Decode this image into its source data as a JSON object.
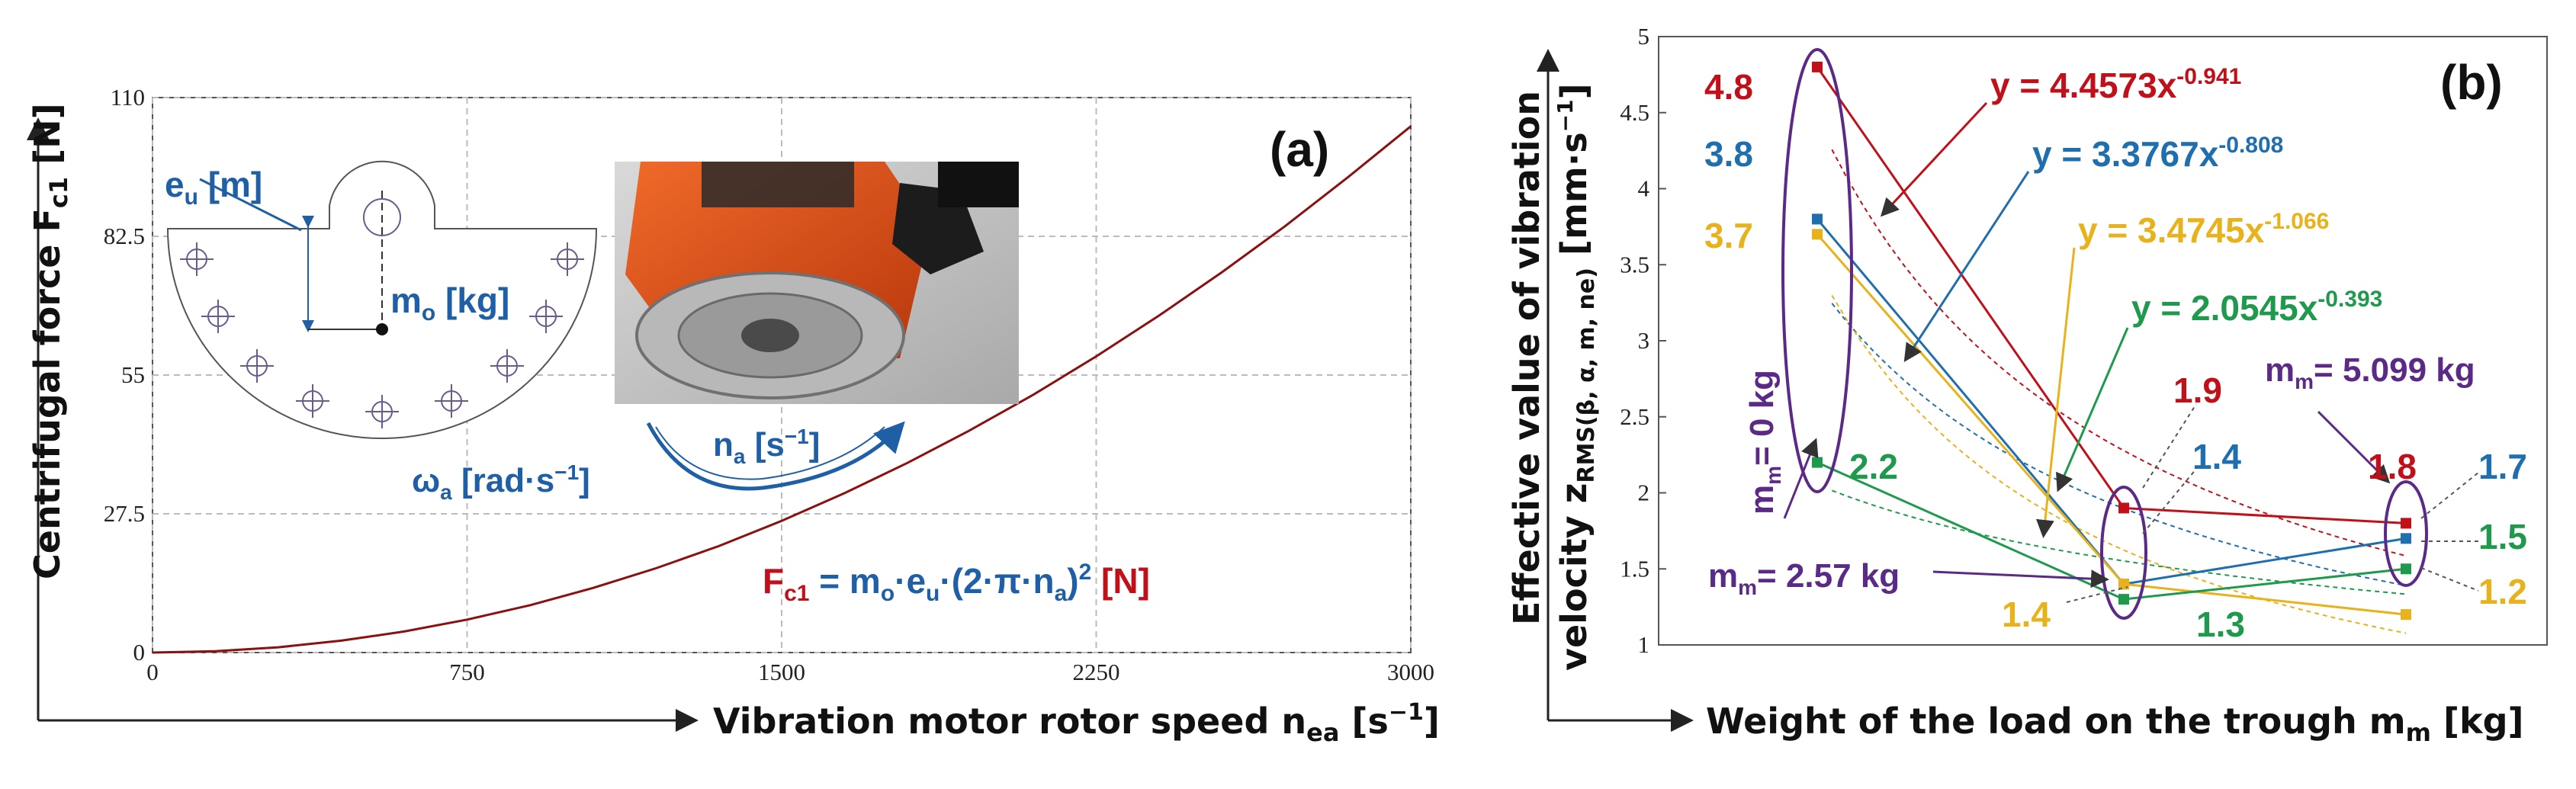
{
  "chart_data": [
    {
      "panel": "(a)",
      "type": "line",
      "xlabel": "Vibration motor rotor speed n",
      "xlabel_sub": "ea",
      "xlabel_unit": " [s",
      "xlabel_unit_exp": "−1",
      "xlabel_unit_end": "]",
      "ylabel": "Centrifugal force F",
      "ylabel_sub": "c1",
      "ylabel_unit": " [N]",
      "x_ticks": [
        "0",
        "750",
        "1500",
        "2250",
        "3000"
      ],
      "y_ticks": [
        "0",
        "27.5",
        "55",
        "82.5",
        "110"
      ],
      "xlim": [
        0,
        3000
      ],
      "ylim": [
        0,
        110
      ],
      "curve": {
        "x": [
          0,
          150,
          300,
          450,
          600,
          750,
          900,
          1050,
          1200,
          1350,
          1500,
          1650,
          1800,
          1950,
          2100,
          2250,
          2400,
          2550,
          2700,
          2850,
          3000
        ],
        "y": [
          0,
          0.26,
          1.04,
          2.35,
          4.17,
          6.52,
          9.39,
          12.8,
          16.7,
          21.1,
          26.1,
          31.6,
          37.6,
          44.1,
          51.1,
          58.7,
          66.8,
          75.4,
          84.5,
          94.2,
          104.3
        ]
      },
      "color": "#8b1010",
      "formula": {
        "lhs": "F",
        "lhs_sub": "c1",
        "rhs1": " = m",
        "rhs1_sub": "o",
        "rhs2": "·e",
        "rhs2_sub": "u",
        "rhs3": "·(2·π·n",
        "rhs3_sub": "a",
        "rhs4": ")",
        "rhs4_sup": "2",
        "unit": " [N]"
      },
      "inset": {
        "eu_label": "e",
        "eu_sub": "u",
        "eu_unit": " [m]",
        "mo_label": "m",
        "mo_sub": "o",
        "mo_unit": " [kg]",
        "na_label": "n",
        "na_sub": "a",
        "na_unit": " [s",
        "na_exp": "−1",
        "na_end": "]",
        "omega_label": "ω",
        "omega_sub": "a",
        "omega_unit": " [rad·s",
        "omega_exp": "−1",
        "omega_end": "]"
      }
    },
    {
      "panel": "(b)",
      "type": "line",
      "xlabel": "Weight of the load on the trough m",
      "xlabel_sub": "m",
      "xlabel_unit": " [kg]",
      "ylabel_line1": "Effective value of vibration",
      "ylabel_line2a": "velocity z",
      "ylabel_line2_sub": "RMS(β, α, m, ne)",
      "ylabel_line2b": " [mm·s",
      "ylabel_line2_exp": "−1",
      "ylabel_line2_end": "]",
      "y_ticks": [
        "1",
        "1.5",
        "2",
        "2.5",
        "3",
        "3.5",
        "4",
        "4.5",
        "5"
      ],
      "ylim": [
        1,
        5
      ],
      "x": [
        0,
        2.57,
        5.099
      ],
      "series": [
        {
          "name": "red",
          "color": "#c0111a",
          "values": [
            4.8,
            1.9,
            1.8
          ],
          "fit": "y = 4.4573x",
          "fit_exp": "-0.941"
        },
        {
          "name": "blue",
          "color": "#1f6fae",
          "values": [
            3.8,
            1.4,
            1.7
          ],
          "fit": "y = 3.3767x",
          "fit_exp": "-0.808"
        },
        {
          "name": "yellow",
          "color": "#e8b21c",
          "values": [
            3.7,
            1.4,
            1.2
          ],
          "fit": "y = 3.4745x",
          "fit_exp": "-1.066"
        },
        {
          "name": "green",
          "color": "#1f9a4c",
          "values": [
            2.2,
            1.3,
            1.5
          ],
          "fit": "y = 2.0545x",
          "fit_exp": "-0.393"
        }
      ],
      "point_labels": {
        "left": [
          "4.8",
          "3.8",
          "3.7",
          "2.2"
        ],
        "mid": [
          "1.9",
          "1.4",
          "1.4",
          "1.3"
        ],
        "right": [
          "1.8",
          "1.7",
          "1.5",
          "1.2"
        ]
      },
      "mass_labels": [
        {
          "prefix": "m",
          "sub": "m",
          "value": "= 0 kg"
        },
        {
          "prefix": "m",
          "sub": "m",
          "value": "= 2.57 kg"
        },
        {
          "prefix": "m",
          "sub": "m",
          "value": "= 5.099 kg"
        }
      ],
      "mass_color": "#5b2a86"
    }
  ]
}
